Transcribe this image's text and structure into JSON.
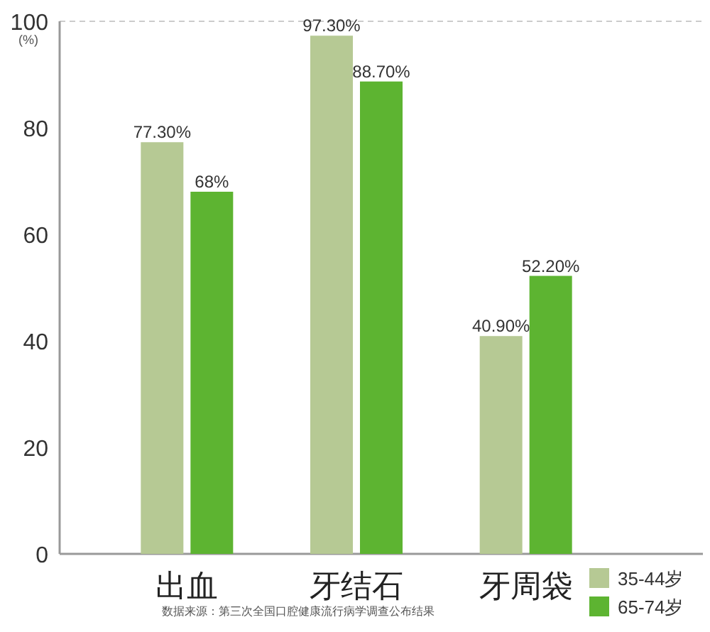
{
  "chart_data": {
    "type": "bar",
    "ylabel": "(%)",
    "categories": [
      "出血",
      "牙结石",
      "牙周袋"
    ],
    "series": [
      {
        "name": "35-44岁",
        "color": "#b6c994",
        "values": [
          77.3,
          97.3,
          40.9
        ],
        "value_labels": [
          "77.30%",
          "97.30%",
          "40.90%"
        ]
      },
      {
        "name": "65-74岁",
        "color": "#5db431",
        "values": [
          68,
          88.7,
          52.2
        ],
        "value_labels": [
          "68%",
          "88.70%",
          "52.20%"
        ]
      }
    ],
    "ylim": [
      0,
      100
    ],
    "yticks": [
      0,
      20,
      40,
      60,
      80,
      100
    ],
    "ref_lines": [
      {
        "axis": "y",
        "value": 100,
        "color": "#cccccc",
        "line_style": "dashed"
      }
    ],
    "legend": "bottom right",
    "grid": false,
    "annotations": [
      "数据来源：第三次全国口腔健康流行病学调查公布结果"
    ]
  }
}
